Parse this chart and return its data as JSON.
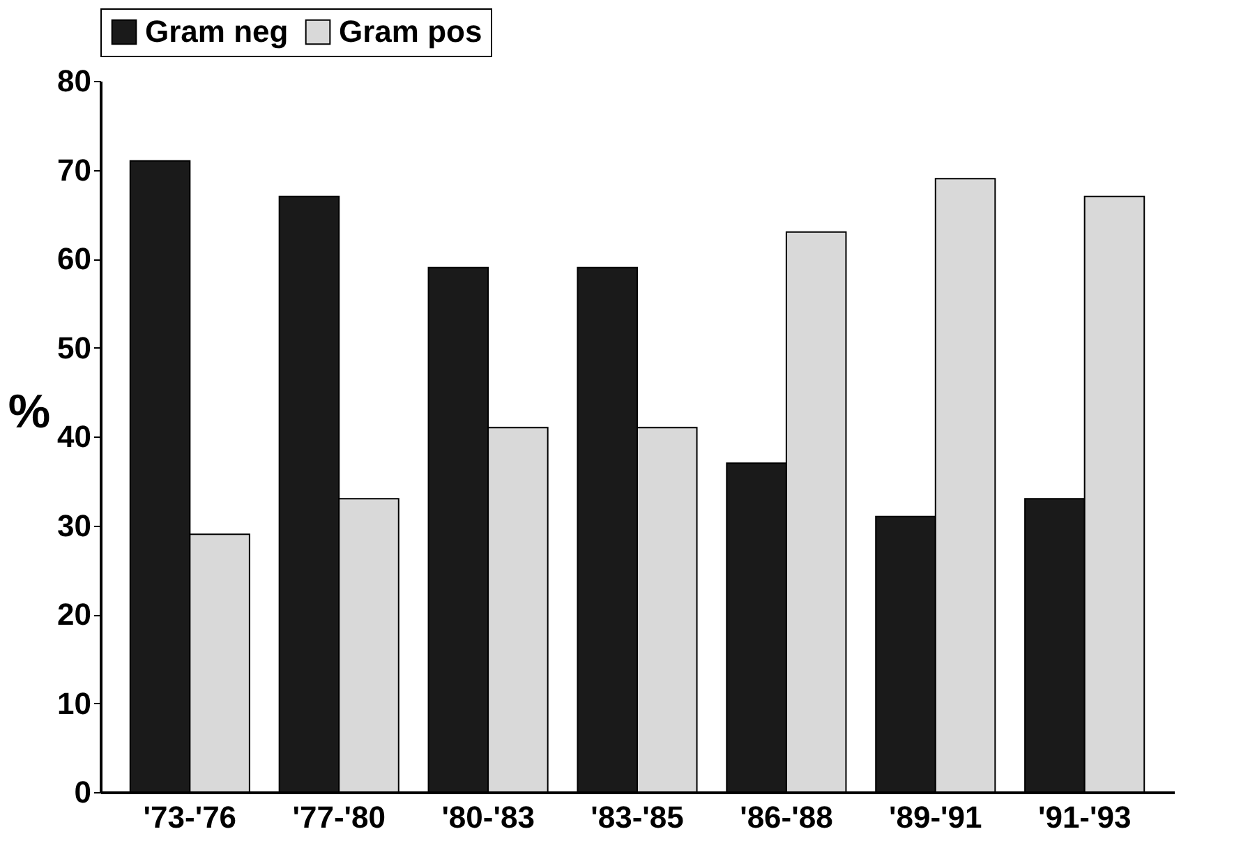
{
  "chart_data": {
    "type": "bar",
    "ylabel": "%",
    "categories": [
      "'73-'76",
      "'77-'80",
      "'80-'83",
      "'83-'85",
      "'86-'88",
      "'89-'91",
      "'91-'93"
    ],
    "series": [
      {
        "name": "Gram neg",
        "color": "#1a1a1a",
        "values": [
          71,
          67,
          59,
          59,
          37,
          31,
          33
        ]
      },
      {
        "name": "Gram pos",
        "color": "#d9d9d9",
        "values": [
          29,
          33,
          41,
          41,
          63,
          69,
          67
        ]
      }
    ],
    "ylim": [
      0,
      80
    ],
    "yticks": [
      0,
      10,
      20,
      30,
      40,
      50,
      60,
      70,
      80
    ],
    "grid": false,
    "legend": "top"
  }
}
